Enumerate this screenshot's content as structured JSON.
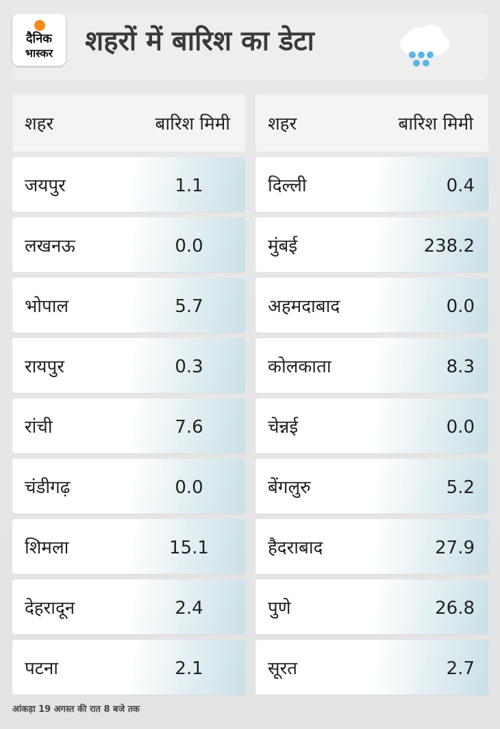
{
  "header": {
    "logo_line1": "दैनिक",
    "logo_line2": "भास्कर",
    "title": "शहरों में बारिश का डेटा"
  },
  "tables": {
    "left": {
      "col_city": "शहर",
      "col_rain": "बारिश मिमी",
      "rows": [
        {
          "city": "जयपुर",
          "rain": "1.1"
        },
        {
          "city": "लखनऊ",
          "rain": "0.0"
        },
        {
          "city": "भोपाल",
          "rain": "5.7"
        },
        {
          "city": "रायपुर",
          "rain": "0.3"
        },
        {
          "city": "रांची",
          "rain": "7.6"
        },
        {
          "city": "चंडीगढ़",
          "rain": "0.0"
        },
        {
          "city": "शिमला",
          "rain": "15.1"
        },
        {
          "city": "देहरादून",
          "rain": "2.4"
        },
        {
          "city": "पटना",
          "rain": "2.1"
        }
      ]
    },
    "right": {
      "col_city": "शहर",
      "col_rain": "बारिश मिमी",
      "rows": [
        {
          "city": "दिल्ली",
          "rain": "0.4"
        },
        {
          "city": "मुंबई",
          "rain": "238.2"
        },
        {
          "city": "अहमदाबाद",
          "rain": "0.0"
        },
        {
          "city": "कोलकाता",
          "rain": "8.3"
        },
        {
          "city": "चेन्नई",
          "rain": "0.0"
        },
        {
          "city": "बेंगलुरु",
          "rain": "5.2"
        },
        {
          "city": "हैदराबाद",
          "rain": "27.9"
        },
        {
          "city": "पुणे",
          "rain": "26.8"
        },
        {
          "city": "सूरत",
          "rain": "2.7"
        }
      ]
    }
  },
  "footnote": "आंकड़ा 19 अगस्त की रात 8 बजे तक",
  "icons": {
    "logo": "sun-logo-icon",
    "weather": "rain-cloud-icon"
  },
  "colors": {
    "accent": "#f28c1e",
    "rain_drop": "#5bb6e8",
    "value_cell": "#c9e0e7"
  }
}
